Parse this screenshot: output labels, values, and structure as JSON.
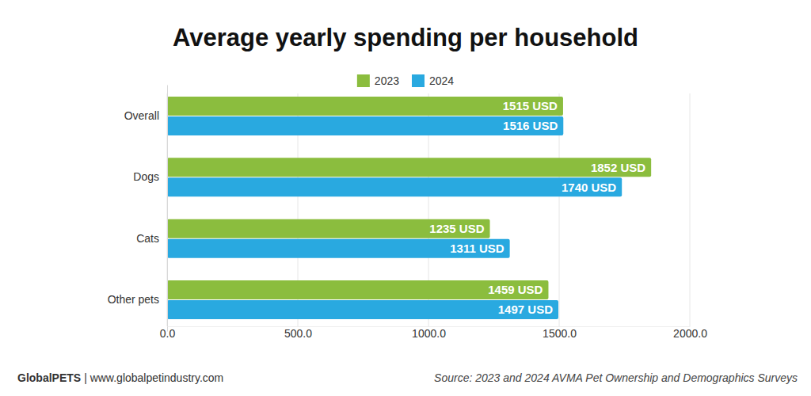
{
  "chart_data": {
    "type": "bar",
    "orientation": "horizontal",
    "title": "Average yearly spending per household",
    "categories": [
      "Overall",
      "Dogs",
      "Cats",
      "Other pets"
    ],
    "series": [
      {
        "name": "2023",
        "color": "#8bbd3e",
        "values": [
          1515,
          1852,
          1235,
          1459
        ],
        "value_labels": [
          "1515 USD",
          "1852 USD",
          "1235 USD",
          "1459 USD"
        ]
      },
      {
        "name": "2024",
        "color": "#29a9e0",
        "values": [
          1516,
          1740,
          1311,
          1497
        ],
        "value_labels": [
          "1516 USD",
          "1740 USD",
          "1311 USD",
          "1497 USD"
        ]
      }
    ],
    "xlim": [
      0,
      2000
    ],
    "xticks": [
      {
        "value": 0,
        "label": "0.0"
      },
      {
        "value": 500,
        "label": "500.0"
      },
      {
        "value": 1000,
        "label": "1000.0"
      },
      {
        "value": 1500,
        "label": "1500.0"
      },
      {
        "value": 2000,
        "label": "2000.0"
      }
    ],
    "grid": true,
    "legend": "top",
    "data_labels": true,
    "annotations": [
      "GlobalPETS",
      "| www.globalpetindustry.com",
      "Source: 2023 and 2024 AVMA Pet Ownership and Demographics Surveys"
    ]
  }
}
